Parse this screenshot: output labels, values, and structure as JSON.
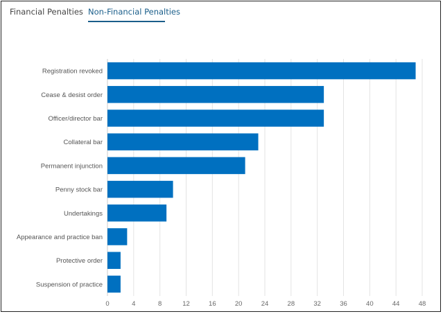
{
  "tabs": [
    {
      "label": "Financial Penalties",
      "active": false
    },
    {
      "label": "Non-Financial Penalties",
      "active": true
    }
  ],
  "colors": {
    "bar": "#0070c0",
    "grid": "#e3e3e3",
    "active_tab": "#1a5e8a"
  },
  "chart_data": {
    "type": "bar",
    "orientation": "horizontal",
    "title": "",
    "xlabel": "",
    "ylabel": "",
    "categories": [
      "Registration revoked",
      "Cease & desist order",
      "Officer/director bar",
      "Collateral bar",
      "Permanent injunction",
      "Penny stock bar",
      "Undertakings",
      "Appearance and practice ban",
      "Protective order",
      "Suspension of practice"
    ],
    "values": [
      47,
      33,
      33,
      23,
      21,
      10,
      9,
      3,
      2,
      2
    ],
    "xlim": [
      0,
      48
    ],
    "xticks": [
      "0",
      "4",
      "8",
      "12",
      "16",
      "20",
      "24",
      "28",
      "32",
      "36",
      "40",
      "44",
      "48"
    ],
    "grid": true,
    "legend": "none"
  }
}
